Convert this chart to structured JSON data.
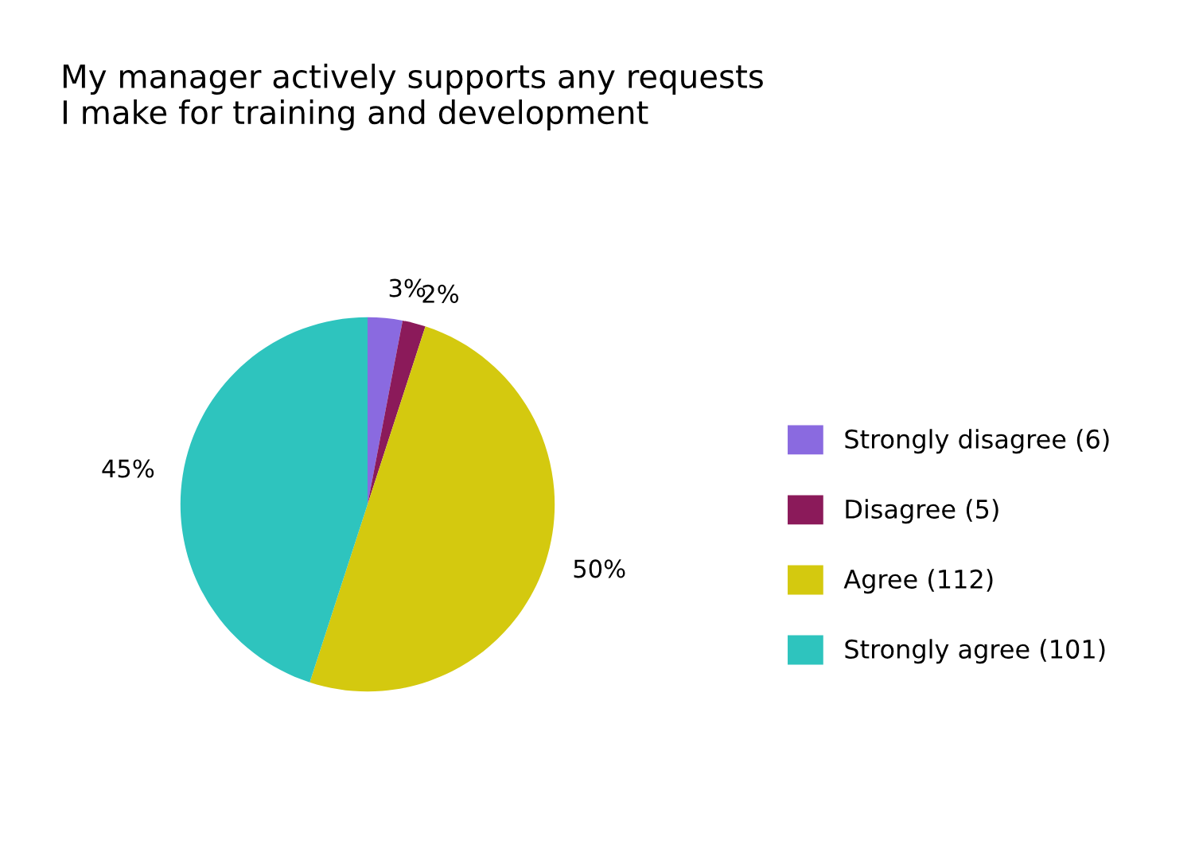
{
  "chart_data": {
    "type": "pie",
    "title": "My manager actively supports any requests\nI make for training and development",
    "categories": [
      "Strongly disagree (6)",
      "Disagree (5)",
      "Agree (112)",
      "Strongly agree (101)"
    ],
    "values": [
      3,
      2,
      50,
      45
    ],
    "value_labels": [
      "3%",
      "2%",
      "50%",
      "45%"
    ],
    "colors": [
      "#8a6ae0",
      "#8b1a5a",
      "#d4c90f",
      "#2ec4be"
    ],
    "legend": "right"
  }
}
